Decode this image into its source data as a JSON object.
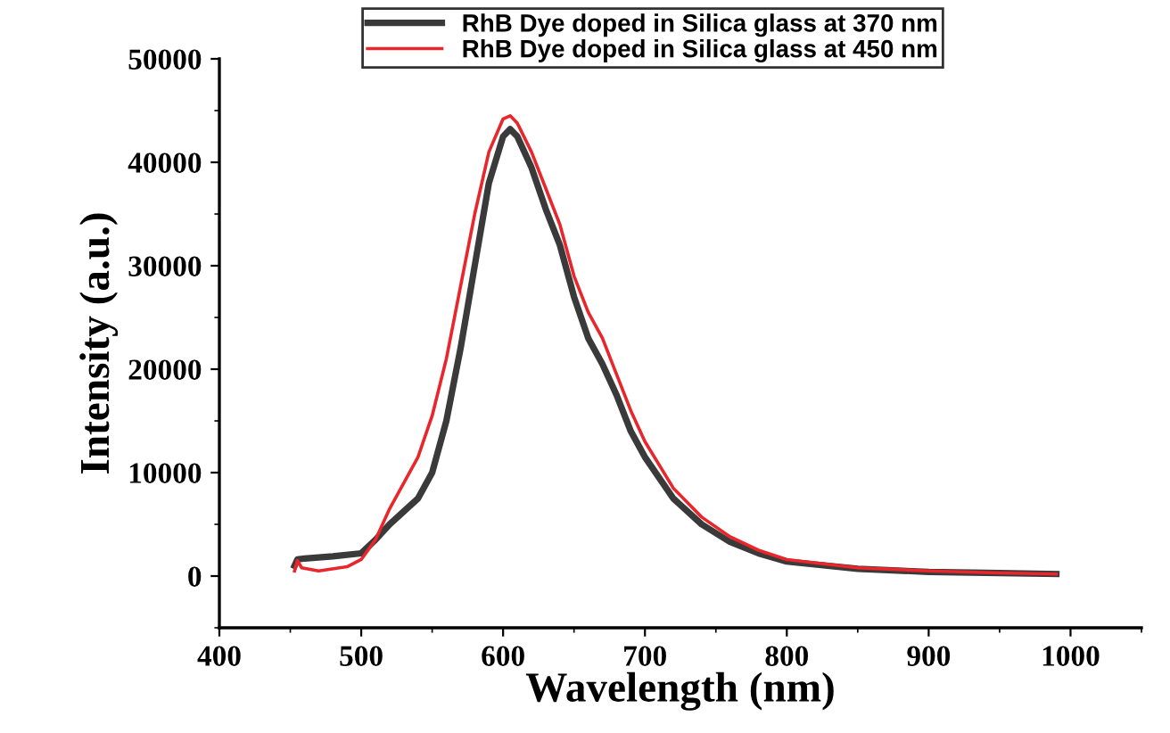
{
  "chart_data": {
    "type": "line",
    "xlabel": "Wavelength (nm)",
    "ylabel": "Intensity (a.u.)",
    "xlim": [
      400,
      1050
    ],
    "xticks": [
      400,
      500,
      600,
      700,
      800,
      900,
      1000
    ],
    "ylim": [
      -5000,
      50000
    ],
    "yticks": [
      0,
      10000,
      20000,
      30000,
      40000,
      50000
    ],
    "grid": false,
    "legend": "top",
    "marker": "none",
    "line_style": "solid",
    "series": [
      {
        "name": "RhB Dye doped in Silica glass at 370 nm",
        "color": "#3a3a3a",
        "x": [
          453,
          455,
          460,
          480,
          500,
          510,
          520,
          540,
          550,
          560,
          570,
          580,
          590,
          600,
          605,
          610,
          620,
          630,
          640,
          650,
          660,
          670,
          680,
          690,
          700,
          720,
          740,
          760,
          780,
          800,
          850,
          900,
          950,
          990
        ],
        "values": [
          1000,
          1600,
          1700,
          1900,
          2200,
          3500,
          5000,
          7500,
          10000,
          15000,
          22000,
          30000,
          38000,
          42500,
          43200,
          42500,
          39500,
          35500,
          32000,
          27000,
          23000,
          20500,
          17500,
          14000,
          11500,
          7500,
          5000,
          3300,
          2200,
          1400,
          700,
          400,
          300,
          200
        ]
      },
      {
        "name": "RhB Dye doped in Silica glass at 450 nm",
        "color": "#e8262b",
        "x": [
          453,
          455,
          458,
          470,
          490,
          500,
          510,
          520,
          530,
          540,
          550,
          560,
          570,
          580,
          590,
          600,
          605,
          610,
          620,
          630,
          640,
          650,
          660,
          670,
          680,
          690,
          700,
          720,
          740,
          760,
          780,
          800,
          850,
          900,
          950,
          990
        ],
        "values": [
          500,
          1500,
          800,
          500,
          900,
          1600,
          3500,
          6500,
          9000,
          11500,
          15500,
          21000,
          28000,
          35000,
          41000,
          44200,
          44500,
          43800,
          41000,
          37500,
          34000,
          29000,
          25500,
          23000,
          19500,
          16000,
          13000,
          8500,
          5700,
          3800,
          2500,
          1600,
          800,
          500,
          300,
          200
        ]
      }
    ]
  }
}
